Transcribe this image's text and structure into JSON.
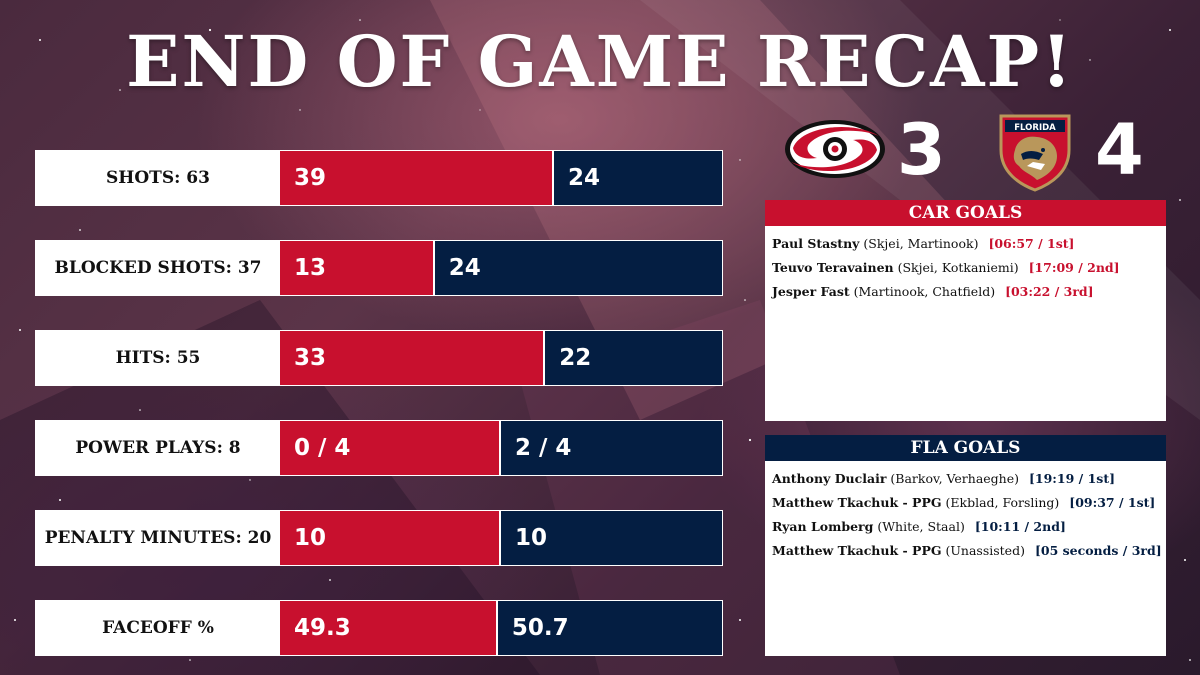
{
  "title": "END OF GAME RECAP!",
  "colors": {
    "car": "#c8102e",
    "fla": "#041e42"
  },
  "teams": {
    "car": {
      "logo": "hurricanes-logo",
      "score": "3"
    },
    "fla": {
      "logo": "panthers-logo",
      "logo_text": "FLORIDA",
      "score": "4"
    }
  },
  "stats": [
    {
      "label": "SHOTS: 63",
      "car": "39",
      "fla": "24",
      "car_share": 0.62
    },
    {
      "label": "BLOCKED SHOTS: 37",
      "car": "13",
      "fla": "24",
      "car_share": 0.35
    },
    {
      "label": "HITS: 55",
      "car": "33",
      "fla": "22",
      "car_share": 0.6
    },
    {
      "label": "POWER PLAYS: 8",
      "car": "0 / 4",
      "fla": "2 / 4",
      "car_share": 0.5
    },
    {
      "label": "PENALTY MINUTES: 20",
      "car": "10",
      "fla": "10",
      "car_share": 0.5
    },
    {
      "label": "FACEOFF %",
      "car": "49.3",
      "fla": "50.7",
      "car_share": 0.493
    }
  ],
  "car_goals": {
    "header": "CAR GOALS",
    "items": [
      {
        "scorer": "Paul Stastny",
        "assists": "(Skjei, Martinook)",
        "time": "[06:57 / 1st]"
      },
      {
        "scorer": "Teuvo Teravainen",
        "assists": "(Skjei, Kotkaniemi)",
        "time": "[17:09 / 2nd]"
      },
      {
        "scorer": "Jesper Fast",
        "assists": "(Martinook, Chatfield)",
        "time": "[03:22 / 3rd]"
      }
    ]
  },
  "fla_goals": {
    "header": "FLA GOALS",
    "items": [
      {
        "scorer": "Anthony Duclair",
        "assists": "(Barkov, Verhaeghe)",
        "time": "[19:19 / 1st]"
      },
      {
        "scorer": "Matthew Tkachuk - PPG",
        "assists": "(Ekblad, Forsling)",
        "time": "[09:37 / 1st]"
      },
      {
        "scorer": "Ryan Lomberg",
        "assists": "(White, Staal)",
        "time": "[10:11 / 2nd]"
      },
      {
        "scorer": "Matthew Tkachuk - PPG",
        "assists": "(Unassisted)",
        "time": "[05 seconds / 3rd]"
      }
    ]
  }
}
